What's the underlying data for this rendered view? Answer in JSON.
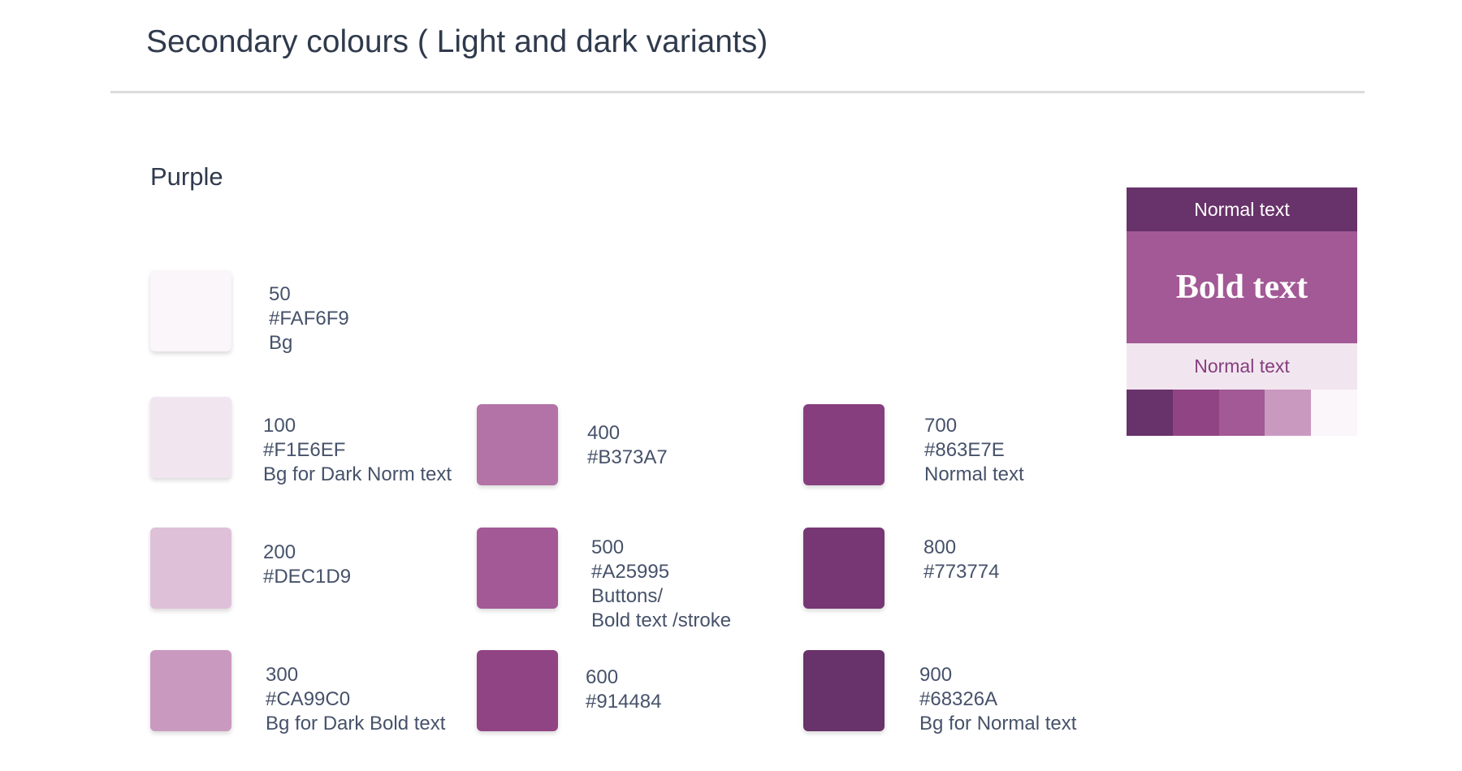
{
  "header": {
    "title": "Secondary colours ( Light and dark variants)"
  },
  "section": {
    "title": "Purple",
    "swatches": [
      {
        "shade": "50",
        "hex": "#FAF6F9",
        "usage": [
          "Bg"
        ]
      },
      {
        "shade": "100",
        "hex": "#F1E6EF",
        "usage": [
          "Bg for Dark Norm text"
        ]
      },
      {
        "shade": "200",
        "hex": "#DEC1D9",
        "usage": []
      },
      {
        "shade": "300",
        "hex": "#CA99C0",
        "usage": [
          "Bg for Dark Bold text"
        ]
      },
      {
        "shade": "400",
        "hex": "#B373A7",
        "usage": []
      },
      {
        "shade": "500",
        "hex": "#A25995",
        "usage": [
          "Buttons/",
          "Bold text /stroke"
        ]
      },
      {
        "shade": "600",
        "hex": "#914484",
        "usage": []
      },
      {
        "shade": "700",
        "hex": "#863E7E",
        "usage": [
          "Normal text"
        ]
      },
      {
        "shade": "800",
        "hex": "#773774",
        "usage": []
      },
      {
        "shade": "900",
        "hex": "#68326A",
        "usage": [
          "Bg for Normal text"
        ]
      }
    ]
  },
  "preview": {
    "top_text": "Normal text",
    "bold_text": "Bold text",
    "bottom_text": "Normal text"
  }
}
